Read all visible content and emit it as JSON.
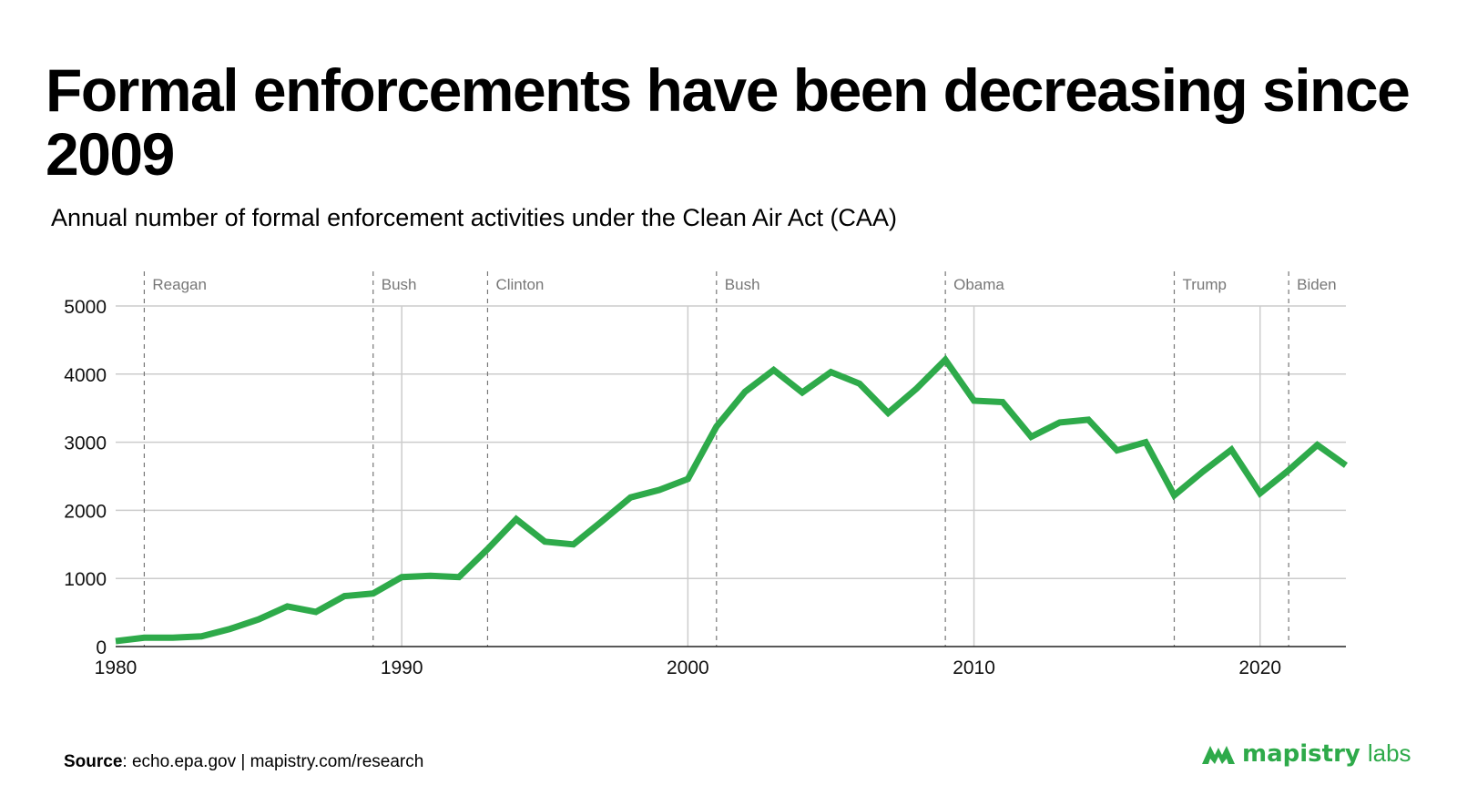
{
  "header": {
    "title": "Formal enforcements have been decreasing since 2009",
    "subtitle": "Annual number of formal enforcement activities under the Clean Air Act (CAA)"
  },
  "footer": {
    "source_label": "Source",
    "source_text": ": echo.epa.gov | mapistry.com/research",
    "brand_name": "mapistry",
    "brand_sub": "labs",
    "brand_color": "#2eaa4a"
  },
  "chart_data": {
    "type": "line",
    "title": "",
    "xlabel": "",
    "ylabel": "",
    "xlim": [
      1980,
      2023
    ],
    "ylim": [
      0,
      5000
    ],
    "xticks": [
      1980,
      1990,
      2000,
      2010,
      2020
    ],
    "yticks": [
      0,
      1000,
      2000,
      3000,
      4000,
      5000
    ],
    "grid": true,
    "line_color": "#2eaa4a",
    "series": [
      {
        "x": [
          1980,
          1981,
          1982,
          1983,
          1984,
          1985,
          1986,
          1987,
          1988,
          1989,
          1990,
          1991,
          1992,
          1993,
          1994,
          1995,
          1996,
          1997,
          1998,
          1999,
          2000,
          2001,
          2002,
          2003,
          2004,
          2005,
          2006,
          2007,
          2008,
          2009,
          2010,
          2011,
          2012,
          2013,
          2014,
          2015,
          2016,
          2017,
          2018,
          2019,
          2020,
          2021,
          2022,
          2023
        ],
        "y": [
          80,
          130,
          130,
          150,
          260,
          400,
          590,
          510,
          740,
          780,
          1020,
          1040,
          1020,
          1430,
          1870,
          1540,
          1500,
          1840,
          2190,
          2300,
          2460,
          3230,
          3740,
          4060,
          3730,
          4030,
          3860,
          3430,
          3790,
          4210,
          3610,
          3590,
          3080,
          3290,
          3330,
          2880,
          3000,
          2220,
          2570,
          2890,
          2250,
          2590,
          2960,
          2660
        ]
      }
    ],
    "annotations": [
      {
        "label": "Reagan",
        "x": 1981
      },
      {
        "label": "Bush",
        "x": 1989
      },
      {
        "label": "Clinton",
        "x": 1993
      },
      {
        "label": "Bush",
        "x": 2001
      },
      {
        "label": "Obama",
        "x": 2009
      },
      {
        "label": "Trump",
        "x": 2017
      },
      {
        "label": "Biden",
        "x": 2021
      }
    ]
  }
}
